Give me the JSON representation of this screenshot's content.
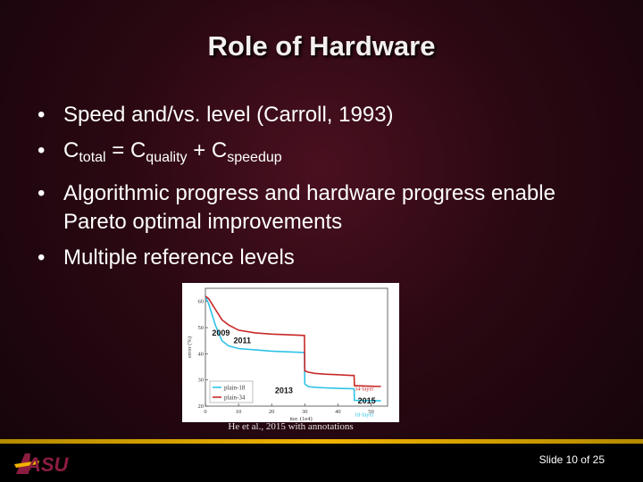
{
  "slide": {
    "title": "Role of Hardware",
    "bullets": [
      {
        "text": "Speed and/vs. level (Carroll, 1993)"
      },
      {
        "formula": {
          "lhs": "C",
          "lhs_sub": "total",
          "eq": " = ",
          "t1": "C",
          "t1_sub": "quality",
          "plus": " + ",
          "t2": "C",
          "t2_sub": "speedup"
        }
      },
      {
        "text": "Algorithmic progress and hardware progress enable Pareto optimal improvements"
      },
      {
        "text": "Multiple reference levels"
      }
    ],
    "caption": "He et al., 2015 with annotations",
    "slide_number": "Slide 10 of 25",
    "logo_text": "ASU"
  },
  "chart_data": {
    "type": "line",
    "xlabel": "iter. (1e4)",
    "ylabel": "error (%)",
    "xlim": [
      0,
      55
    ],
    "ylim": [
      20,
      65
    ],
    "x_ticks": [
      "0",
      "10",
      "20",
      "30",
      "40",
      "50"
    ],
    "y_ticks": [
      "20",
      "30",
      "40",
      "50",
      "60"
    ],
    "x_tick_values": [
      0,
      10,
      20,
      30,
      40,
      50
    ],
    "y_tick_values": [
      20,
      30,
      40,
      50,
      60
    ],
    "grid": false,
    "legend_position": "bottom-left",
    "series": [
      {
        "name": "plain-18",
        "color": "#2fc3e8",
        "x": [
          0,
          1,
          2,
          3,
          4,
          5,
          7,
          10,
          15,
          20,
          29.9,
          30,
          31,
          33,
          36,
          40,
          43,
          44.9,
          45,
          48,
          50,
          53
        ],
        "y": [
          62,
          59,
          55,
          51,
          48,
          45,
          43,
          42,
          41.5,
          41,
          40.5,
          28.5,
          27.5,
          27.2,
          27,
          26.8,
          26.7,
          26.6,
          22.2,
          22.1,
          22.1,
          22.0
        ]
      },
      {
        "name": "plain-34",
        "color": "#c82828",
        "x": [
          0,
          1,
          2,
          3,
          4,
          5,
          7,
          10,
          15,
          20,
          29.9,
          30,
          31,
          33,
          36,
          40,
          43,
          44.9,
          45,
          48,
          50,
          53
        ],
        "y": [
          62,
          61,
          59,
          57,
          55,
          53,
          51,
          49,
          48,
          47.5,
          47,
          33.5,
          33,
          32.5,
          32.2,
          32,
          31.8,
          31.7,
          27.8,
          27.7,
          27.6,
          27.5
        ]
      }
    ],
    "annotations": [
      {
        "text": "2009",
        "x": 2,
        "y": 47
      },
      {
        "text": "2011",
        "x": 8.5,
        "y": 44
      },
      {
        "text": "2013",
        "x": 21,
        "y": 25
      },
      {
        "text": "2015",
        "x": 46,
        "y": 21
      },
      {
        "text": "34-layer",
        "x": 45,
        "y": 26
      },
      {
        "text": "18-layer",
        "x": 45,
        "y": 16
      }
    ]
  }
}
